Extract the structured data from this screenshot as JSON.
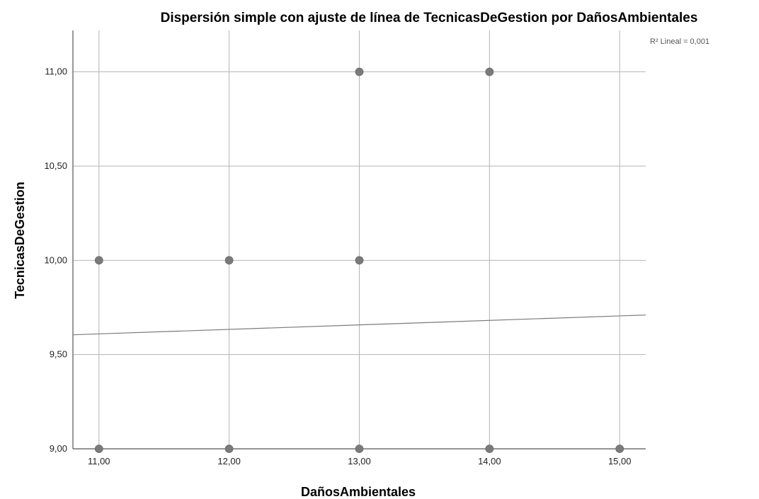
{
  "chart_data": {
    "type": "scatter",
    "title": "Dispersión simple con ajuste de línea de TecnicasDeGestion por DañosAmbientales",
    "xlabel": "DañosAmbientales",
    "ylabel": "TecnicasDeGestion",
    "xlim": [
      10.8,
      15.2
    ],
    "ylim": [
      9.0,
      11.22
    ],
    "xticks": [
      11,
      12,
      13,
      14,
      15
    ],
    "yticks": [
      9.0,
      9.5,
      10.0,
      10.5,
      11.0
    ],
    "xtick_labels": [
      "11,00",
      "12,00",
      "13,00",
      "14,00",
      "15,00"
    ],
    "ytick_labels": [
      "9,00",
      "9,50",
      "10,00",
      "10,50",
      "11,00"
    ],
    "points": [
      {
        "x": 11,
        "y": 10
      },
      {
        "x": 11,
        "y": 9
      },
      {
        "x": 12,
        "y": 10
      },
      {
        "x": 12,
        "y": 9
      },
      {
        "x": 13,
        "y": 11
      },
      {
        "x": 13,
        "y": 10
      },
      {
        "x": 13,
        "y": 9
      },
      {
        "x": 14,
        "y": 11
      },
      {
        "x": 14,
        "y": 9
      },
      {
        "x": 15,
        "y": 9
      }
    ],
    "fit_line": {
      "x": [
        10.8,
        15.2
      ],
      "y": [
        9.605,
        9.71
      ]
    },
    "annotation": "R² Lineal = 0,001",
    "grid": true,
    "legend": "none"
  }
}
